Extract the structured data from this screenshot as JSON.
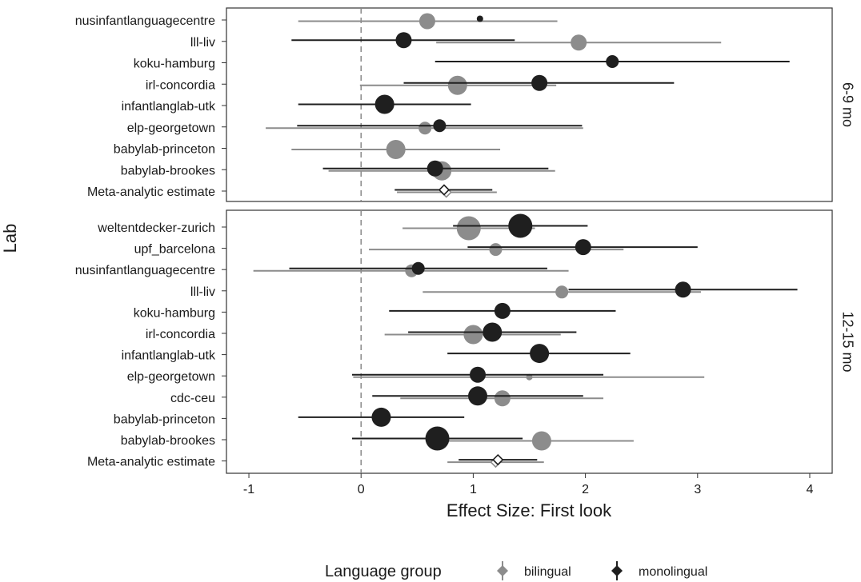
{
  "chart_data": {
    "type": "forest",
    "xlabel": "Effect Size: First look",
    "ylabel": "Lab",
    "xlim": [
      -1.2,
      4.2
    ],
    "x_ticks": [
      -1,
      0,
      1,
      2,
      3,
      4
    ],
    "reference_line": 0,
    "legend": {
      "title": "Language group",
      "position": "bottom",
      "entries": [
        {
          "name": "bilingual",
          "color": "#8c8c8c"
        },
        {
          "name": "monolingual",
          "color": "#1f1f1f"
        }
      ]
    },
    "panels": [
      {
        "label": "6-9 mo",
        "labs": [
          "nusinfantlanguagecentre",
          "lll-liv",
          "koku-hamburg",
          "irl-concordia",
          "infantlanglab-utk",
          "elp-georgetown",
          "babylab-princeton",
          "babylab-brookes",
          "Meta-analytic estimate"
        ],
        "bilingual": [
          {
            "lab": "nusinfantlanguagecentre",
            "est": 0.59,
            "lo": -0.56,
            "hi": 1.75,
            "n": "medium"
          },
          {
            "lab": "lll-liv",
            "est": 1.94,
            "lo": 0.67,
            "hi": 3.21,
            "n": "medium"
          },
          {
            "lab": "irl-concordia",
            "est": 0.86,
            "lo": -0.01,
            "hi": 1.74,
            "n": "large"
          },
          {
            "lab": "elp-georgetown",
            "est": 0.57,
            "lo": -0.85,
            "hi": 1.98,
            "n": "small"
          },
          {
            "lab": "babylab-princeton",
            "est": 0.31,
            "lo": -0.62,
            "hi": 1.24,
            "n": "large"
          },
          {
            "lab": "babylab-brookes",
            "est": 0.72,
            "lo": -0.29,
            "hi": 1.73,
            "n": "large"
          },
          {
            "lab": "Meta-analytic estimate",
            "est": 0.76,
            "lo": 0.32,
            "hi": 1.21,
            "n": "diamond"
          }
        ],
        "monolingual": [
          {
            "lab": "nusinfantlanguagecentre",
            "est": 1.06,
            "lo": 1.06,
            "hi": 1.06,
            "n": "tiny"
          },
          {
            "lab": "lll-liv",
            "est": 0.38,
            "lo": -0.62,
            "hi": 1.37,
            "n": "medium"
          },
          {
            "lab": "koku-hamburg",
            "est": 2.24,
            "lo": 0.66,
            "hi": 3.82,
            "n": "small"
          },
          {
            "lab": "irl-concordia",
            "est": 1.59,
            "lo": 0.38,
            "hi": 2.79,
            "n": "medium"
          },
          {
            "lab": "infantlanglab-utk",
            "est": 0.21,
            "lo": -0.56,
            "hi": 0.98,
            "n": "large"
          },
          {
            "lab": "elp-georgetown",
            "est": 0.7,
            "lo": -0.57,
            "hi": 1.97,
            "n": "small"
          },
          {
            "lab": "babylab-brookes",
            "est": 0.66,
            "lo": -0.34,
            "hi": 1.67,
            "n": "medium"
          },
          {
            "lab": "Meta-analytic estimate",
            "est": 0.74,
            "lo": 0.3,
            "hi": 1.17,
            "n": "diamond"
          }
        ]
      },
      {
        "label": "12-15 mo",
        "labs": [
          "weltentdecker-zurich",
          "upf_barcelona",
          "nusinfantlanguagecentre",
          "lll-liv",
          "koku-hamburg",
          "irl-concordia",
          "infantlanglab-utk",
          "elp-georgetown",
          "cdc-ceu",
          "babylab-princeton",
          "babylab-brookes",
          "Meta-analytic estimate"
        ],
        "bilingual": [
          {
            "lab": "weltentdecker-zurich",
            "est": 0.96,
            "lo": 0.37,
            "hi": 1.55,
            "n": "xlarge"
          },
          {
            "lab": "upf_barcelona",
            "est": 1.2,
            "lo": 0.07,
            "hi": 2.34,
            "n": "small"
          },
          {
            "lab": "nusinfantlanguagecentre",
            "est": 0.45,
            "lo": -0.96,
            "hi": 1.85,
            "n": "small"
          },
          {
            "lab": "lll-liv",
            "est": 1.79,
            "lo": 0.55,
            "hi": 3.03,
            "n": "small"
          },
          {
            "lab": "irl-concordia",
            "est": 1.0,
            "lo": 0.21,
            "hi": 1.78,
            "n": "large"
          },
          {
            "lab": "elp-georgetown",
            "est": 1.5,
            "lo": -0.07,
            "hi": 3.06,
            "n": "tiny"
          },
          {
            "lab": "cdc-ceu",
            "est": 1.26,
            "lo": 0.35,
            "hi": 2.16,
            "n": "medium"
          },
          {
            "lab": "babylab-brookes",
            "est": 1.61,
            "lo": 0.78,
            "hi": 2.43,
            "n": "large"
          },
          {
            "lab": "Meta-analytic estimate",
            "est": 1.2,
            "lo": 0.77,
            "hi": 1.63,
            "n": "diamond"
          }
        ],
        "monolingual": [
          {
            "lab": "weltentdecker-zurich",
            "est": 1.42,
            "lo": 0.82,
            "hi": 2.02,
            "n": "xlarge"
          },
          {
            "lab": "upf_barcelona",
            "est": 1.98,
            "lo": 0.95,
            "hi": 3.0,
            "n": "medium"
          },
          {
            "lab": "nusinfantlanguagecentre",
            "est": 0.51,
            "lo": -0.64,
            "hi": 1.66,
            "n": "small"
          },
          {
            "lab": "lll-liv",
            "est": 2.87,
            "lo": 1.85,
            "hi": 3.89,
            "n": "medium"
          },
          {
            "lab": "koku-hamburg",
            "est": 1.26,
            "lo": 0.25,
            "hi": 2.27,
            "n": "medium"
          },
          {
            "lab": "irl-concordia",
            "est": 1.17,
            "lo": 0.42,
            "hi": 1.92,
            "n": "large"
          },
          {
            "lab": "infantlanglab-utk",
            "est": 1.59,
            "lo": 0.77,
            "hi": 2.4,
            "n": "large"
          },
          {
            "lab": "elp-georgetown",
            "est": 1.04,
            "lo": -0.08,
            "hi": 2.16,
            "n": "medium"
          },
          {
            "lab": "cdc-ceu",
            "est": 1.04,
            "lo": 0.1,
            "hi": 1.98,
            "n": "large"
          },
          {
            "lab": "babylab-princeton",
            "est": 0.18,
            "lo": -0.56,
            "hi": 0.92,
            "n": "large"
          },
          {
            "lab": "babylab-brookes",
            "est": 0.68,
            "lo": -0.08,
            "hi": 1.44,
            "n": "xlarge"
          },
          {
            "lab": "Meta-analytic estimate",
            "est": 1.22,
            "lo": 0.87,
            "hi": 1.57,
            "n": "diamond"
          }
        ]
      }
    ]
  }
}
